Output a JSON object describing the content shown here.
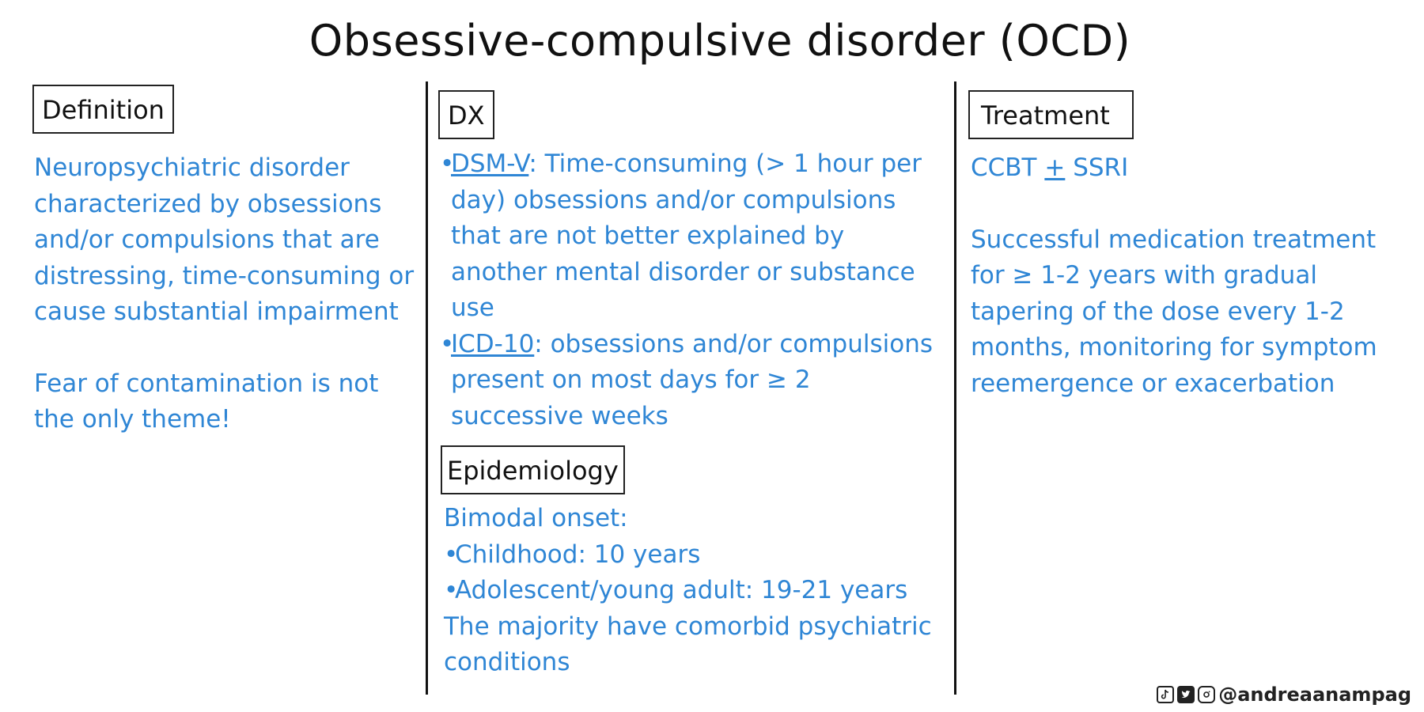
{
  "title": "Obsessive-compulsive disorder (OCD)",
  "columns": {
    "definition": {
      "heading": "Definition",
      "paragraph1": "Neuropsychiatric disorder characterized by obsessions and/or compulsions that are distressing, time-consuming or cause substantial impairment",
      "paragraph2": "Fear of contamination is not the only theme!"
    },
    "dx": {
      "heading": "DX",
      "items": [
        {
          "bullet": "•",
          "term": "DSM-V",
          "text": ": Time-consuming (> 1 hour per day) obsessions and/or compulsions that are not better explained by another mental disorder or substance use"
        },
        {
          "bullet": "•",
          "term": "ICD-10",
          "text": ": obsessions and/or compulsions present on most days for ≥ 2 successive weeks"
        }
      ]
    },
    "epidemiology": {
      "heading": "Epidemiology",
      "line1": "Bimodal onset:",
      "items": [
        {
          "bullet": "•",
          "text": "Childhood: 10 years"
        },
        {
          "bullet": "•",
          "text": "Adolescent/young adult: 19-21 years"
        }
      ],
      "closing": "The majority have comorbid psychiatric conditions"
    },
    "treatment": {
      "heading": "Treatment",
      "line1_prefix": "CCBT ",
      "line1_pm": "+",
      "line1_suffix": " SSRI",
      "paragraph": "Successful medication treatment for ≥ 1-2 years with gradual tapering of the dose every 1-2 months, monitoring for symptom reemergence or exacerbation"
    }
  },
  "footer": {
    "handle": "@andreaanampag",
    "icons": [
      "tiktok-icon",
      "twitter-icon",
      "instagram-icon"
    ]
  },
  "colors": {
    "accent_blue": "#2f86d5",
    "ink": "#111111"
  }
}
